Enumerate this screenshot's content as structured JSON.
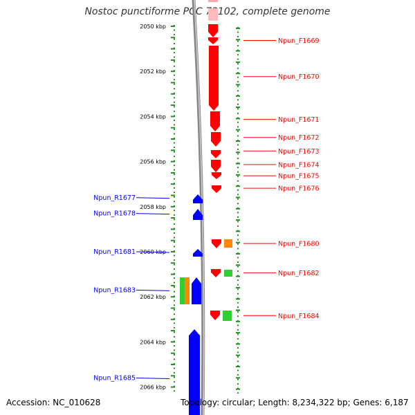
{
  "title": "Nostoc punctiforme PCC 73102, complete genome",
  "accession_label": "Accession: NC_010628",
  "summary_label": "Topology: circular; Length: 8,234,322 bp; Genes: 6,187",
  "colors": {
    "forward": "#ff0000",
    "reverse": "#0000ff",
    "green": "#33cc33",
    "orange": "#ff8800",
    "ruler": "#228B22",
    "backbone": "#888888"
  },
  "kbp_ticks": [
    {
      "kbp": 2050,
      "label": "2050 kbp"
    },
    {
      "kbp": 2052,
      "label": "2052 kbp"
    },
    {
      "kbp": 2054,
      "label": "2054 kbp"
    },
    {
      "kbp": 2056,
      "label": "2056 kbp"
    },
    {
      "kbp": 2058,
      "label": "2058 kbp"
    },
    {
      "kbp": 2060,
      "label": "2060 kbp"
    },
    {
      "kbp": 2062,
      "label": "2062 kbp"
    },
    {
      "kbp": 2064,
      "label": "2064 kbp"
    },
    {
      "kbp": 2066,
      "label": "2066 kbp"
    }
  ],
  "forward_labels": [
    {
      "name": "Npun_F1669",
      "kbp": 2050.6
    },
    {
      "name": "Npun_F1670",
      "kbp": 2052.2
    },
    {
      "name": "Npun_F1671",
      "kbp": 2054.1
    },
    {
      "name": "Npun_F1672",
      "kbp": 2054.9
    },
    {
      "name": "Npun_F1673",
      "kbp": 2055.5
    },
    {
      "name": "Npun_F1674",
      "kbp": 2056.1
    },
    {
      "name": "Npun_F1675",
      "kbp": 2056.6
    },
    {
      "name": "Npun_F1676",
      "kbp": 2057.15
    },
    {
      "name": "Npun_F1680",
      "kbp": 2059.6
    },
    {
      "name": "Npun_F1682",
      "kbp": 2060.9
    },
    {
      "name": "Npun_F1684",
      "kbp": 2062.8
    }
  ],
  "reverse_labels": [
    {
      "name": "Npun_R1677",
      "kbp": 2057.6
    },
    {
      "name": "Npun_R1678",
      "kbp": 2058.3
    },
    {
      "name": "Npun_R1681",
      "kbp": 2060.0
    },
    {
      "name": "Npun_R1683",
      "kbp": 2061.7
    },
    {
      "name": "Npun_R1685",
      "kbp": 2065.6
    }
  ]
}
